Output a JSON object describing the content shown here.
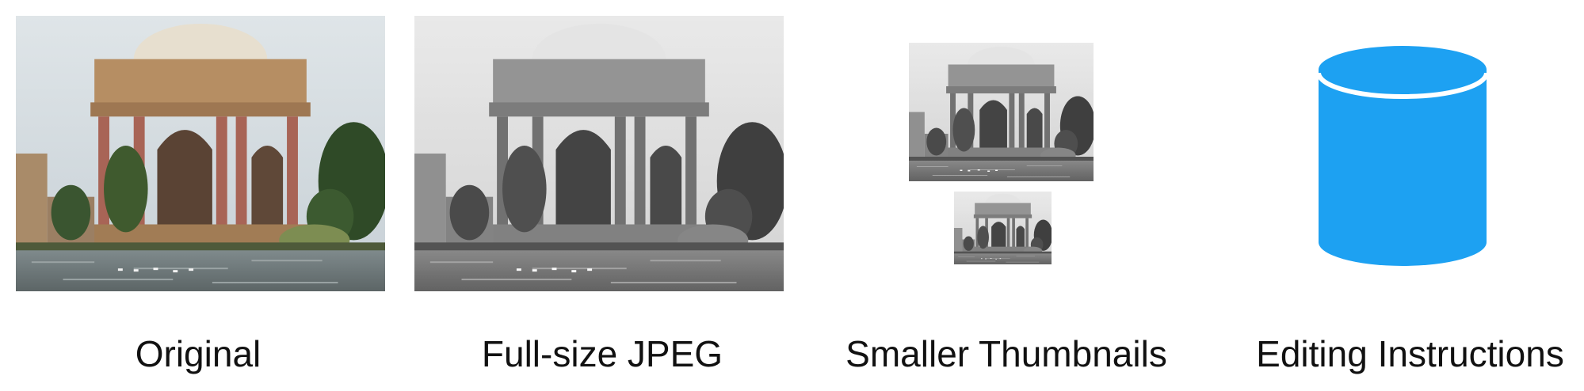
{
  "panels": [
    {
      "caption": "Original"
    },
    {
      "caption": "Full-size JPEG"
    },
    {
      "caption": "Smaller Thumbnails"
    },
    {
      "caption": "Editing Instructions"
    }
  ],
  "photo_subject": "domed-rotunda-with-columns-by-a-lagoon",
  "colors": {
    "database": "#1da1f2",
    "background": "#ffffff",
    "text": "#111111"
  }
}
